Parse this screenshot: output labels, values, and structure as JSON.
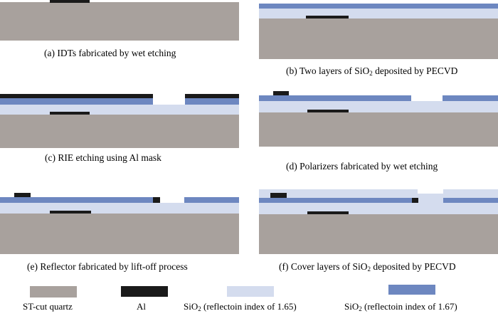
{
  "colors": {
    "quartz": "#a8a19d",
    "al": "#1a1a1a",
    "sio2_165": "#d4dcee",
    "sio2_167": "#6d87c0"
  },
  "panels": {
    "a": {
      "caption": "(a) IDTs fabricated by wet etching"
    },
    "b": {
      "caption_pre": "(b) Two layers of SiO",
      "caption_sub": "2",
      "caption_post": " deposited by PECVD"
    },
    "c": {
      "caption": "(c) RIE etching using Al mask"
    },
    "d": {
      "caption": "(d) Polarizers fabricated by wet etching"
    },
    "e": {
      "caption": "(e) Reflector fabricated by lift-off process"
    },
    "f": {
      "caption_pre": "(f) Cover layers of SiO",
      "caption_sub": "2",
      "caption_post": " deposited by PECVD"
    }
  },
  "legend": {
    "quartz": "ST-cut quartz",
    "al": "Al",
    "sio2_165_pre": "SiO",
    "sio2_165_sub": "2",
    "sio2_165_post": " (reflectoin index of 1.65)",
    "sio2_167_pre": "SiO",
    "sio2_167_sub": "2",
    "sio2_167_post": " (reflectoin index of 1.67)"
  }
}
